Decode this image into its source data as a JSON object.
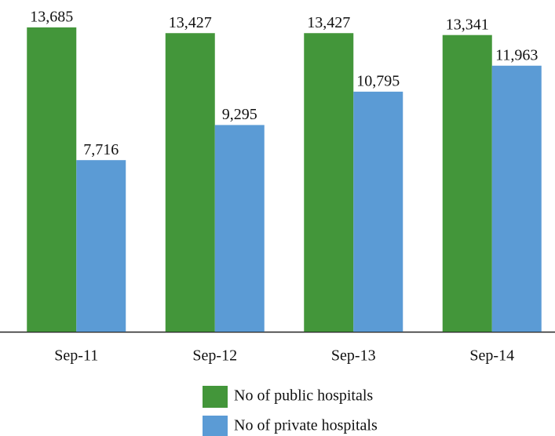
{
  "chart_data": {
    "type": "bar",
    "categories": [
      "Sep-11",
      "Sep-12",
      "Sep-13",
      "Sep-14"
    ],
    "series": [
      {
        "name": "No of public hospitals",
        "color": "#43963a",
        "values": [
          13685,
          13427,
          13427,
          13341
        ],
        "value_labels": [
          "13,685",
          "13,427",
          "13,427",
          "13,341"
        ]
      },
      {
        "name": "No of private hospitals",
        "color": "#5b9bd5",
        "values": [
          7716,
          9295,
          10795,
          11963
        ],
        "value_labels": [
          "7,716",
          "9,295",
          "10,795",
          "11,963"
        ]
      }
    ],
    "ylim": [
      0,
      14000
    ]
  }
}
